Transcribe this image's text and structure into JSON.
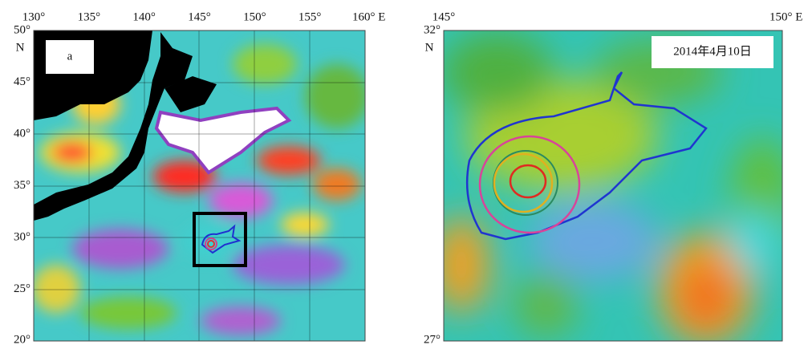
{
  "panel_a": {
    "label": "a",
    "x_labels": [
      "130°",
      "135°",
      "140°",
      "145°",
      "150°",
      "155°",
      "160° E"
    ],
    "y_labels": [
      "50°",
      "45°",
      "40°",
      "35°",
      "30°",
      "25°",
      "20°"
    ],
    "north": "N"
  },
  "panel_b": {
    "date": "2014年4月10日",
    "x_labels": [
      "145°",
      "150° E"
    ],
    "y_labels": [
      "32°",
      "27°"
    ],
    "north": "N"
  }
}
